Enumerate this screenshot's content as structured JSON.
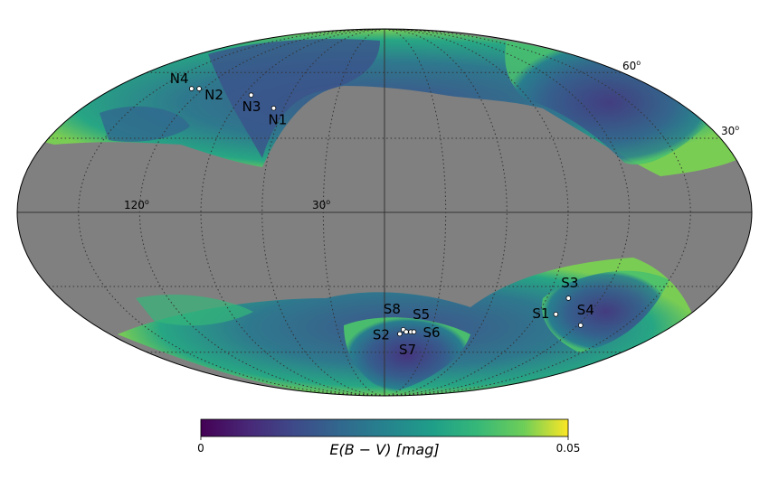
{
  "map": {
    "projection": "mollweide",
    "background_color": "#808080",
    "grid_style": "dotted",
    "grid_latitudes_labeled": [
      "60°",
      "30°"
    ],
    "grid_longitudes_labeled": [
      "120°",
      "30°"
    ]
  },
  "grid_labels": {
    "lat60": "60",
    "lat30": "30",
    "lon120": "120",
    "lon30": "30",
    "deg": "o"
  },
  "fields": [
    {
      "name": "N4",
      "lon": 128,
      "lat": 52
    },
    {
      "name": "N2",
      "lon": 123,
      "lat": 52
    },
    {
      "name": "N3",
      "lon": 85,
      "lat": 49
    },
    {
      "name": "N1",
      "lon": 66,
      "lat": 43
    },
    {
      "name": "S3",
      "lon": -102,
      "lat": -35
    },
    {
      "name": "S1",
      "lon": -101,
      "lat": -42
    },
    {
      "name": "S4",
      "lon": -122,
      "lat": -47
    },
    {
      "name": "S8",
      "lon": -12,
      "lat": -49
    },
    {
      "name": "S5",
      "lon": -17,
      "lat": -50
    },
    {
      "name": "S2",
      "lon": -10,
      "lat": -51
    },
    {
      "name": "S6",
      "lon": -19,
      "lat": -50
    },
    {
      "name": "S7",
      "lon": -14,
      "lat": -50
    }
  ],
  "colorbar": {
    "label": "E(B − V) [mag]",
    "min_label": "0",
    "max_label": "0.05",
    "colormap": "viridis",
    "min": 0,
    "max": 0.05
  }
}
